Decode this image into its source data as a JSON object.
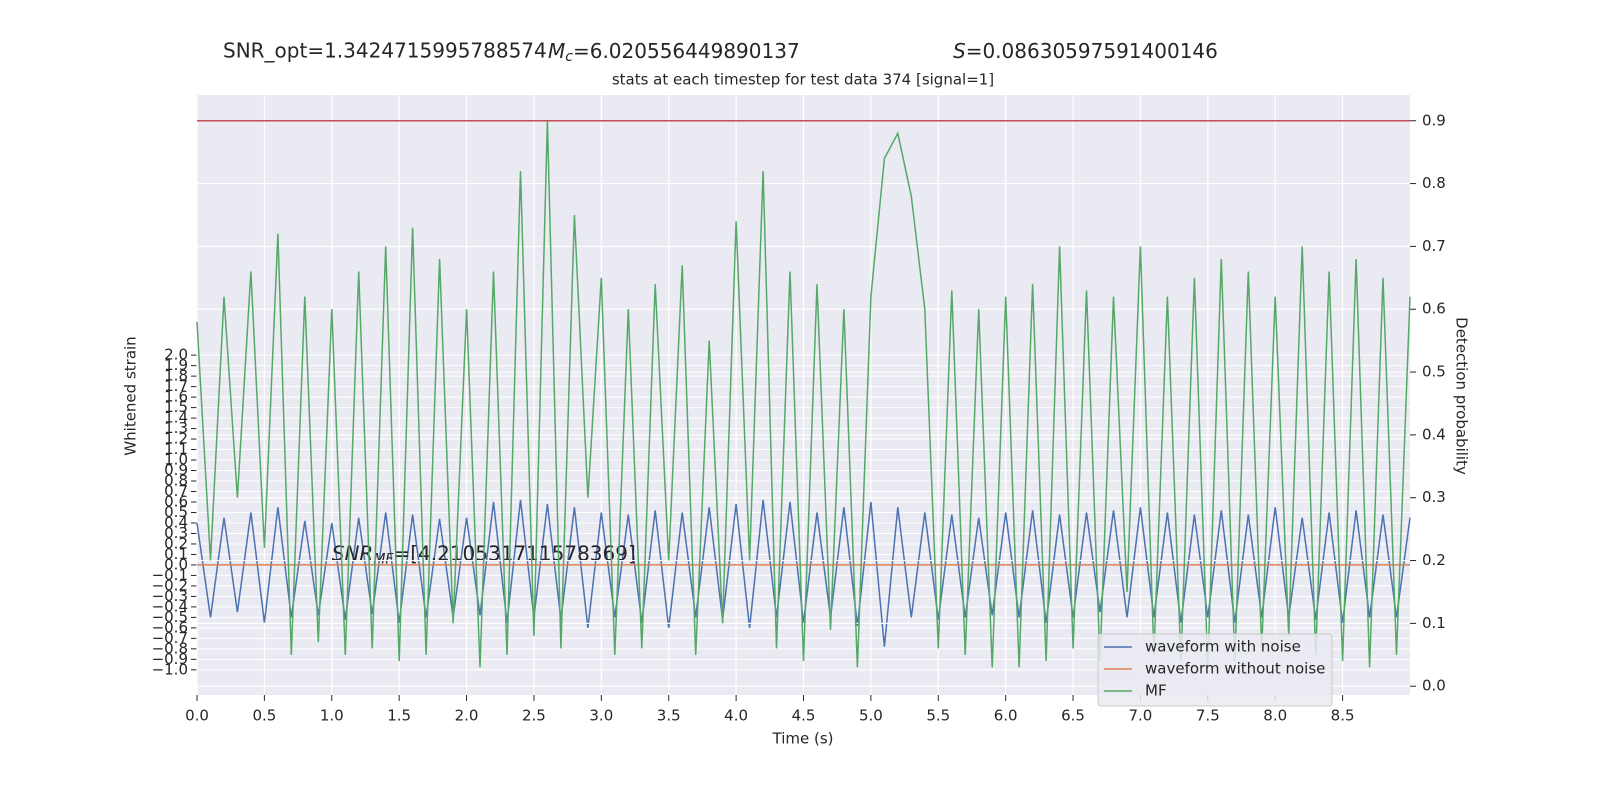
{
  "chart_data": {
    "type": "line",
    "title": "stats at each timestep for test data 374 [signal=1]",
    "header": [
      {
        "text": "SNR_opt=1.3424715995788574"
      },
      {
        "symbol": "M",
        "subscript": "c",
        "text": "=6.020556449890137"
      },
      {
        "symbol": "S",
        "text": "=0.08630597591400146"
      }
    ],
    "annotation": {
      "symbol": "SNR",
      "subscript": "MF",
      "text": "=[4.210531711578369]"
    },
    "x_label": "Time (s)",
    "y_label": "Whitened strain",
    "y2_label": "Detection probability",
    "grid": true,
    "legend": "lower right",
    "xlim": [
      0,
      9
    ],
    "ylim": [
      -1.24,
      4.48
    ],
    "y2lim": [
      -0.014,
      0.941
    ],
    "xticks": [
      {
        "value": 0,
        "label": "0.0"
      },
      {
        "value": 0.5,
        "label": "0.5"
      },
      {
        "value": 1,
        "label": "1.0"
      },
      {
        "value": 1.5,
        "label": "1.5"
      },
      {
        "value": 2,
        "label": "2.0"
      },
      {
        "value": 2.5,
        "label": "2.5"
      },
      {
        "value": 3,
        "label": "3.0"
      },
      {
        "value": 3.5,
        "label": "3.5"
      },
      {
        "value": 4,
        "label": "4.0"
      },
      {
        "value": 4.5,
        "label": "4.5"
      },
      {
        "value": 5,
        "label": "5.0"
      },
      {
        "value": 5.5,
        "label": "5.5"
      },
      {
        "value": 6,
        "label": "6.0"
      },
      {
        "value": 6.5,
        "label": "6.5"
      },
      {
        "value": 7,
        "label": "7.0"
      },
      {
        "value": 7.5,
        "label": "7.5"
      },
      {
        "value": 8,
        "label": "8.0"
      },
      {
        "value": 8.5,
        "label": "8.5"
      }
    ],
    "yticks": [
      {
        "value": -1,
        "label": "−1.0"
      },
      {
        "value": -0.9,
        "label": "−0.9"
      },
      {
        "value": -0.8,
        "label": "−0.8"
      },
      {
        "value": -0.7,
        "label": "−0.7"
      },
      {
        "value": -0.6,
        "label": "−0.6"
      },
      {
        "value": -0.5,
        "label": "−0.5"
      },
      {
        "value": -0.4,
        "label": "−0.4"
      },
      {
        "value": -0.3,
        "label": "−0.3"
      },
      {
        "value": -0.2,
        "label": "−0.2"
      },
      {
        "value": -0.1,
        "label": "−0.1"
      },
      {
        "value": 0,
        "label": "0.0"
      },
      {
        "value": 0.1,
        "label": "0.1"
      },
      {
        "value": 0.2,
        "label": "0.2"
      },
      {
        "value": 0.3,
        "label": "0.3"
      },
      {
        "value": 0.4,
        "label": "0.4"
      },
      {
        "value": 0.5,
        "label": "0.5"
      },
      {
        "value": 0.6,
        "label": "0.6"
      },
      {
        "value": 0.7,
        "label": "0.7"
      },
      {
        "value": 0.8,
        "label": "0.8"
      },
      {
        "value": 0.9,
        "label": "0.9"
      },
      {
        "value": 1,
        "label": "1.0"
      },
      {
        "value": 1.1,
        "label": "1.1"
      },
      {
        "value": 1.2,
        "label": "1.2"
      },
      {
        "value": 1.3,
        "label": "1.3"
      },
      {
        "value": 1.4,
        "label": "1.4"
      },
      {
        "value": 1.5,
        "label": "1.5"
      },
      {
        "value": 1.6,
        "label": "1.6"
      },
      {
        "value": 1.7,
        "label": "1.7"
      },
      {
        "value": 1.8,
        "label": "1.8"
      },
      {
        "value": 1.9,
        "label": "1.9"
      },
      {
        "value": 2,
        "label": "2.0"
      }
    ],
    "y2ticks": [
      {
        "value": 0,
        "label": "0.0"
      },
      {
        "value": 0.1,
        "label": "0.1"
      },
      {
        "value": 0.2,
        "label": "0.2"
      },
      {
        "value": 0.3,
        "label": "0.3"
      },
      {
        "value": 0.4,
        "label": "0.4"
      },
      {
        "value": 0.5,
        "label": "0.5"
      },
      {
        "value": 0.6,
        "label": "0.6"
      },
      {
        "value": 0.7,
        "label": "0.7"
      },
      {
        "value": 0.8,
        "label": "0.8"
      },
      {
        "value": 0.9,
        "label": "0.9"
      }
    ],
    "hline": {
      "value": 0.9,
      "axis": "y2",
      "color": "#c44e52"
    },
    "x": [
      0,
      0.1,
      0.2,
      0.3,
      0.4,
      0.5,
      0.6,
      0.7,
      0.8,
      0.9,
      1,
      1.1,
      1.2,
      1.3,
      1.4,
      1.5,
      1.6,
      1.7,
      1.8,
      1.9,
      2,
      2.1,
      2.2,
      2.3,
      2.4,
      2.5,
      2.6,
      2.7,
      2.8,
      2.9,
      3,
      3.1,
      3.2,
      3.3,
      3.4,
      3.5,
      3.6,
      3.7,
      3.8,
      3.9,
      4,
      4.1,
      4.2,
      4.3,
      4.4,
      4.5,
      4.6,
      4.7,
      4.8,
      4.9,
      5,
      5.1,
      5.2,
      5.3,
      5.4,
      5.5,
      5.6,
      5.7,
      5.8,
      5.9,
      6,
      6.1,
      6.2,
      6.3,
      6.4,
      6.5,
      6.6,
      6.7,
      6.8,
      6.9,
      7,
      7.1,
      7.2,
      7.3,
      7.4,
      7.5,
      7.6,
      7.7,
      7.8,
      7.9,
      8,
      8.1,
      8.2,
      8.3,
      8.4,
      8.5,
      8.6,
      8.7,
      8.8,
      8.9,
      9
    ],
    "series": [
      {
        "name": "waveform with noise",
        "color": "#4c72b0",
        "values": [
          0.4,
          -0.5,
          0.45,
          -0.45,
          0.5,
          -0.55,
          0.55,
          -0.5,
          0.42,
          -0.48,
          0.4,
          -0.52,
          0.45,
          -0.47,
          0.5,
          -0.55,
          0.48,
          -0.5,
          0.44,
          -0.5,
          0.45,
          -0.48,
          0.6,
          -0.55,
          0.62,
          -0.5,
          0.58,
          -0.52,
          0.55,
          -0.6,
          0.5,
          -0.5,
          0.48,
          -0.55,
          0.52,
          -0.6,
          0.5,
          -0.5,
          0.55,
          -0.52,
          0.58,
          -0.6,
          0.62,
          -0.5,
          0.6,
          -0.55,
          0.5,
          -0.5,
          0.55,
          -0.58,
          0.6,
          -0.78,
          0.55,
          -0.5,
          0.5,
          -0.52,
          0.48,
          -0.5,
          0.45,
          -0.48,
          0.5,
          -0.5,
          0.52,
          -0.55,
          0.48,
          -0.5,
          0.5,
          -0.45,
          0.52,
          -0.5,
          0.55,
          -0.5,
          0.5,
          -0.55,
          0.48,
          -0.5,
          0.52,
          -0.55,
          0.48,
          -0.5,
          0.55,
          -0.5,
          0.45,
          -0.52,
          0.5,
          -0.55,
          0.52,
          -0.5,
          0.48,
          -0.5,
          0.45
        ]
      },
      {
        "name": "waveform without noise",
        "color": "#dd8452",
        "values": [
          0,
          0,
          0,
          0,
          0,
          0,
          0,
          0,
          0,
          0,
          0,
          0,
          0,
          0,
          0,
          0,
          0,
          0,
          0,
          0,
          0,
          0,
          0,
          0,
          0,
          0,
          0,
          0,
          0,
          0,
          0,
          0,
          0,
          0,
          0,
          0,
          0,
          0,
          0,
          0,
          0,
          0,
          0,
          0,
          0,
          0,
          0,
          0,
          0,
          0,
          0,
          0,
          0,
          0,
          0,
          0,
          0,
          0,
          0,
          0,
          0,
          0,
          0,
          0,
          0,
          0,
          0,
          0,
          0,
          0,
          0,
          0,
          0,
          0,
          0,
          0,
          0,
          0,
          0,
          0,
          0,
          0,
          0,
          0,
          0,
          0,
          0,
          0,
          0,
          0,
          0
        ]
      },
      {
        "name": "MF",
        "color": "#55a868",
        "axis": "y2",
        "values": [
          0.58,
          0.2,
          0.62,
          0.3,
          0.66,
          0.22,
          0.72,
          0.05,
          0.62,
          0.07,
          0.6,
          0.05,
          0.66,
          0.06,
          0.7,
          0.04,
          0.73,
          0.05,
          0.68,
          0.1,
          0.6,
          0.03,
          0.66,
          0.05,
          0.82,
          0.08,
          0.9,
          0.06,
          0.75,
          0.3,
          0.65,
          0.05,
          0.6,
          0.06,
          0.64,
          0.2,
          0.67,
          0.05,
          0.55,
          0.1,
          0.74,
          0.2,
          0.82,
          0.06,
          0.66,
          0.04,
          0.64,
          0.09,
          0.6,
          0.03,
          0.62,
          0.84,
          0.88,
          0.78,
          0.6,
          0.06,
          0.63,
          0.05,
          0.6,
          0.03,
          0.62,
          0.03,
          0.64,
          0.04,
          0.7,
          0.06,
          0.63,
          0.04,
          0.62,
          0.15,
          0.7,
          0.05,
          0.62,
          0.04,
          0.65,
          0.03,
          0.68,
          0.04,
          0.66,
          0.06,
          0.62,
          0.08,
          0.7,
          0.05,
          0.66,
          0.04,
          0.68,
          0.03,
          0.65,
          0.05,
          0.62
        ]
      }
    ]
  }
}
